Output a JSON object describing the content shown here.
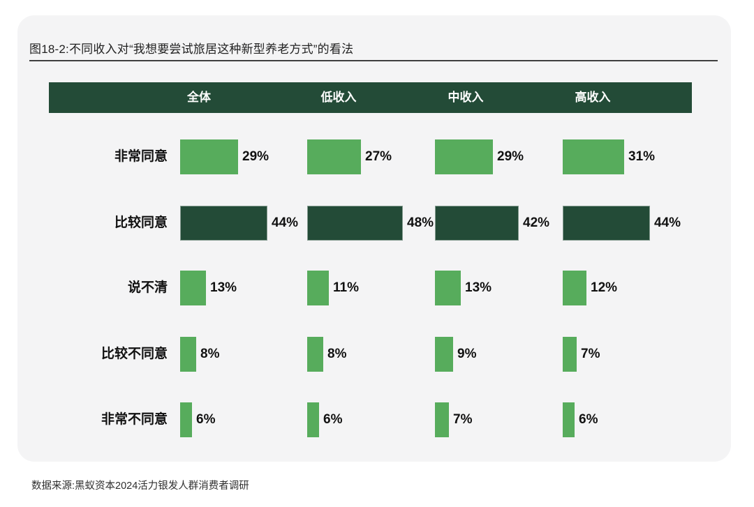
{
  "page": {
    "title": "图18-2:不同收入对“我想要尝试旅居这种新型养老方式”的看法",
    "source": "数据来源:黑蚁资本2024活力银发人群消费者调研"
  },
  "colors": {
    "card_bg": "#f4f4f5",
    "dark_green": "#234b37",
    "light_green": "#57ac5c",
    "text": "#1f1f1f"
  },
  "chart_data": {
    "type": "bar",
    "orientation": "horizontal",
    "title": "图18-2:不同收入对“我想要尝试旅居这种新型养老方式”的看法",
    "unit": "%",
    "xlim": [
      0,
      50
    ],
    "grid": false,
    "legend_position": "top-header-band",
    "categories": [
      "非常同意",
      "比较同意",
      "说不清",
      "比较不同意",
      "非常不同意"
    ],
    "series": [
      {
        "name": "全体",
        "values": [
          29,
          44,
          13,
          8,
          6
        ]
      },
      {
        "name": "低收入",
        "values": [
          27,
          48,
          11,
          8,
          6
        ]
      },
      {
        "name": "中收入",
        "values": [
          29,
          42,
          13,
          9,
          7
        ]
      },
      {
        "name": "高收入",
        "values": [
          31,
          44,
          12,
          7,
          6
        ]
      }
    ],
    "highlight_category": "比较同意",
    "source": "数据来源:黑蚁资本2024活力银发人群消费者调研"
  }
}
